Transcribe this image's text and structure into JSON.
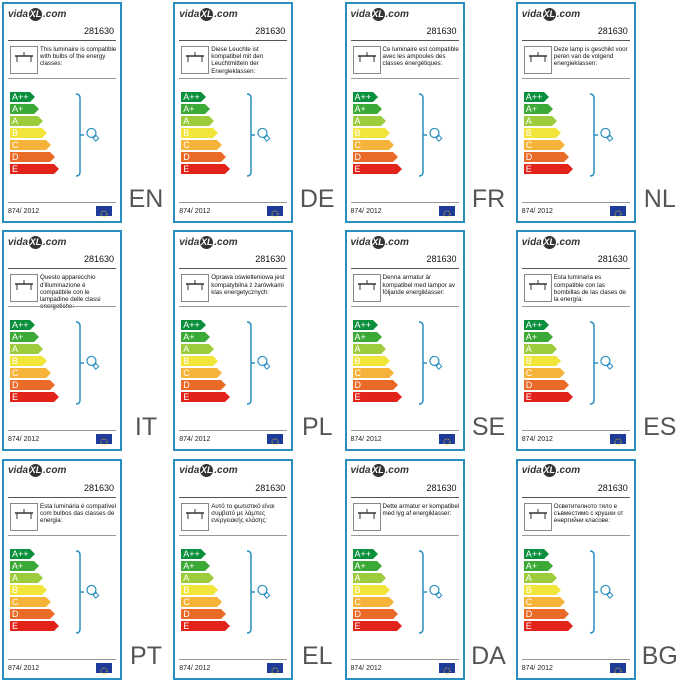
{
  "brand": {
    "pre": "vida",
    "ball": "XL",
    "post": ".com"
  },
  "product_code": "281630",
  "regulation": "874/ 2012",
  "colors": {
    "border": "#2a8fc0",
    "classes": [
      "#0a8f3c",
      "#3aa935",
      "#9ccc3c",
      "#f2e53a",
      "#f6b33a",
      "#ea6a27",
      "#e2231a"
    ]
  },
  "energy_classes": [
    "A++",
    "A+",
    "A",
    "B",
    "C",
    "D",
    "E"
  ],
  "labels": [
    {
      "lang": "EN",
      "text": "This luminaire is compatible with bulbs of the energy classes:"
    },
    {
      "lang": "DE",
      "text": "Diese Leuchte ist kompatibel mit den Leuchtmitteln der Energieklassen:"
    },
    {
      "lang": "FR",
      "text": "Ce luminaire est compatible avec les ampoules des classes énergétiques:"
    },
    {
      "lang": "NL",
      "text": "Deze lamp is geschikt voor peren van de volgend energieklassen:"
    },
    {
      "lang": "IT",
      "text": "Questo apparecchio d'illuminazione è compatibile con le lampadine delle classi energetiche:"
    },
    {
      "lang": "PL",
      "text": "Oprawa oświetleniowa jest kompatybilna z żarówkami klas energetycznych:"
    },
    {
      "lang": "SE",
      "text": "Denna armatur är kompatibel med lampor av följande energiklasser:"
    },
    {
      "lang": "ES",
      "text": "Esta luminaria es compatible con las bombillas de las clases de la energía:"
    },
    {
      "lang": "PT",
      "text": "Esta luminária é compatível com bulbos das classes de energia:"
    },
    {
      "lang": "EL",
      "text": "Αυτό το φωτιστικό είναι συμβατό με λάμπες ενεργειακής κλάσης:"
    },
    {
      "lang": "DA",
      "text": "Dette armatur er kompatibel med lyg af energiklasser:"
    },
    {
      "lang": "BG",
      "text": "Осветителното тяло е съвместимо с крушки от енергийни класове:"
    }
  ]
}
